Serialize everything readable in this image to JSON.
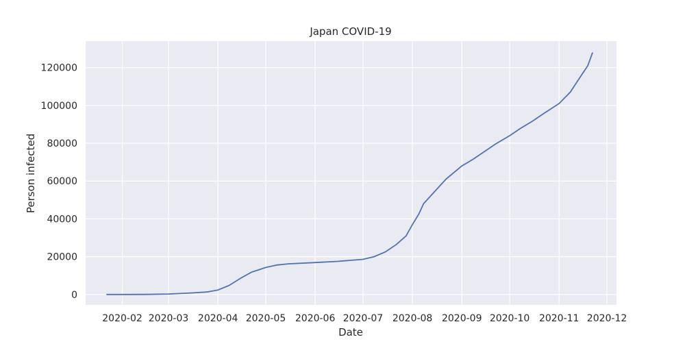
{
  "chart_data": {
    "type": "line",
    "title": "Japan COVID-19",
    "xlabel": "Date",
    "ylabel": "Person infected",
    "x_ticks": [
      "2020-02",
      "2020-03",
      "2020-04",
      "2020-05",
      "2020-06",
      "2020-07",
      "2020-08",
      "2020-09",
      "2020-10",
      "2020-11",
      "2020-12"
    ],
    "y_ticks": [
      0,
      20000,
      40000,
      60000,
      80000,
      100000,
      120000
    ],
    "ylim": [
      -5500,
      134000
    ],
    "xlim": [
      "2020-01-09",
      "2020-12-07"
    ],
    "grid": true,
    "background_color": "#eaeaf2",
    "line_color": "#4c72b0",
    "series": [
      {
        "points": [
          [
            "2020-01-22",
            0
          ],
          [
            "2020-02-01",
            20
          ],
          [
            "2020-02-15",
            60
          ],
          [
            "2020-03-01",
            250
          ],
          [
            "2020-03-15",
            800
          ],
          [
            "2020-03-25",
            1300
          ],
          [
            "2020-04-01",
            2400
          ],
          [
            "2020-04-08",
            4800
          ],
          [
            "2020-04-15",
            8500
          ],
          [
            "2020-04-22",
            11800
          ],
          [
            "2020-05-01",
            14300
          ],
          [
            "2020-05-08",
            15600
          ],
          [
            "2020-05-15",
            16200
          ],
          [
            "2020-06-01",
            16900
          ],
          [
            "2020-06-15",
            17500
          ],
          [
            "2020-07-01",
            18600
          ],
          [
            "2020-07-08",
            20000
          ],
          [
            "2020-07-15",
            22500
          ],
          [
            "2020-07-22",
            26500
          ],
          [
            "2020-07-28",
            31000
          ],
          [
            "2020-08-01",
            37000
          ],
          [
            "2020-08-05",
            42500
          ],
          [
            "2020-08-08",
            48000
          ],
          [
            "2020-08-15",
            54500
          ],
          [
            "2020-08-22",
            61000
          ],
          [
            "2020-09-01",
            68000
          ],
          [
            "2020-09-08",
            71500
          ],
          [
            "2020-09-15",
            75500
          ],
          [
            "2020-09-22",
            79500
          ],
          [
            "2020-10-01",
            84000
          ],
          [
            "2020-10-08",
            88000
          ],
          [
            "2020-10-15",
            91500
          ],
          [
            "2020-10-22",
            95500
          ],
          [
            "2020-11-01",
            101000
          ],
          [
            "2020-11-08",
            107000
          ],
          [
            "2020-11-15",
            116000
          ],
          [
            "2020-11-19",
            121000
          ],
          [
            "2020-11-22",
            128000
          ]
        ]
      }
    ]
  }
}
